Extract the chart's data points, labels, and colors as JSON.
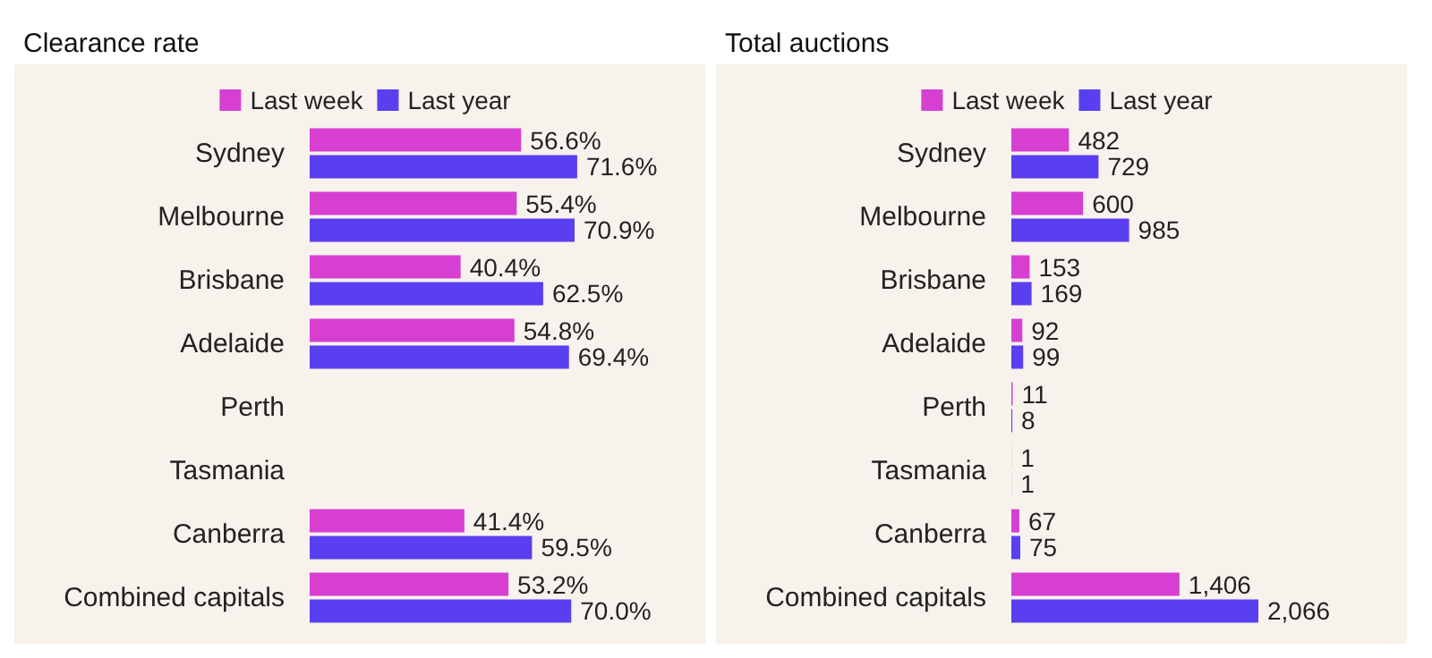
{
  "chart_data": [
    {
      "type": "bar",
      "orientation": "horizontal",
      "title": "Clearance rate",
      "categories": [
        "Sydney",
        "Melbourne",
        "Brisbane",
        "Adelaide",
        "Perth",
        "Tasmania",
        "Canberra",
        "Combined capitals"
      ],
      "legend": "top",
      "series": [
        {
          "name": "Last week",
          "color": "#d63fd2",
          "values": [
            56.6,
            55.4,
            40.4,
            54.8,
            null,
            null,
            41.4,
            53.2
          ],
          "value_labels": [
            "56.6%",
            "55.4%",
            "40.4%",
            "54.8%",
            null,
            null,
            "41.4%",
            "53.2%"
          ]
        },
        {
          "name": "Last year",
          "color": "#5a3ff0",
          "values": [
            71.6,
            70.9,
            62.5,
            69.4,
            null,
            null,
            59.5,
            70.0
          ],
          "value_labels": [
            "71.6%",
            "70.9%",
            "62.5%",
            "69.4%",
            null,
            null,
            "59.5%",
            "70.0%"
          ]
        }
      ]
    },
    {
      "type": "bar",
      "orientation": "horizontal",
      "title": "Total auctions",
      "categories": [
        "Sydney",
        "Melbourne",
        "Brisbane",
        "Adelaide",
        "Perth",
        "Tasmania",
        "Canberra",
        "Combined capitals"
      ],
      "legend": "top",
      "series": [
        {
          "name": "Last week",
          "color": "#d63fd2",
          "values": [
            482,
            600,
            153,
            92,
            11,
            1,
            67,
            1406
          ],
          "value_labels": [
            "482",
            "600",
            "153",
            "92",
            "11",
            "1",
            "67",
            "1,406"
          ]
        },
        {
          "name": "Last year",
          "color": "#5a3ff0",
          "values": [
            729,
            985,
            169,
            99,
            8,
            1,
            75,
            2066
          ],
          "value_labels": [
            "729",
            "985",
            "169",
            "99",
            "8",
            "1",
            "75",
            "2,066"
          ]
        }
      ]
    }
  ]
}
